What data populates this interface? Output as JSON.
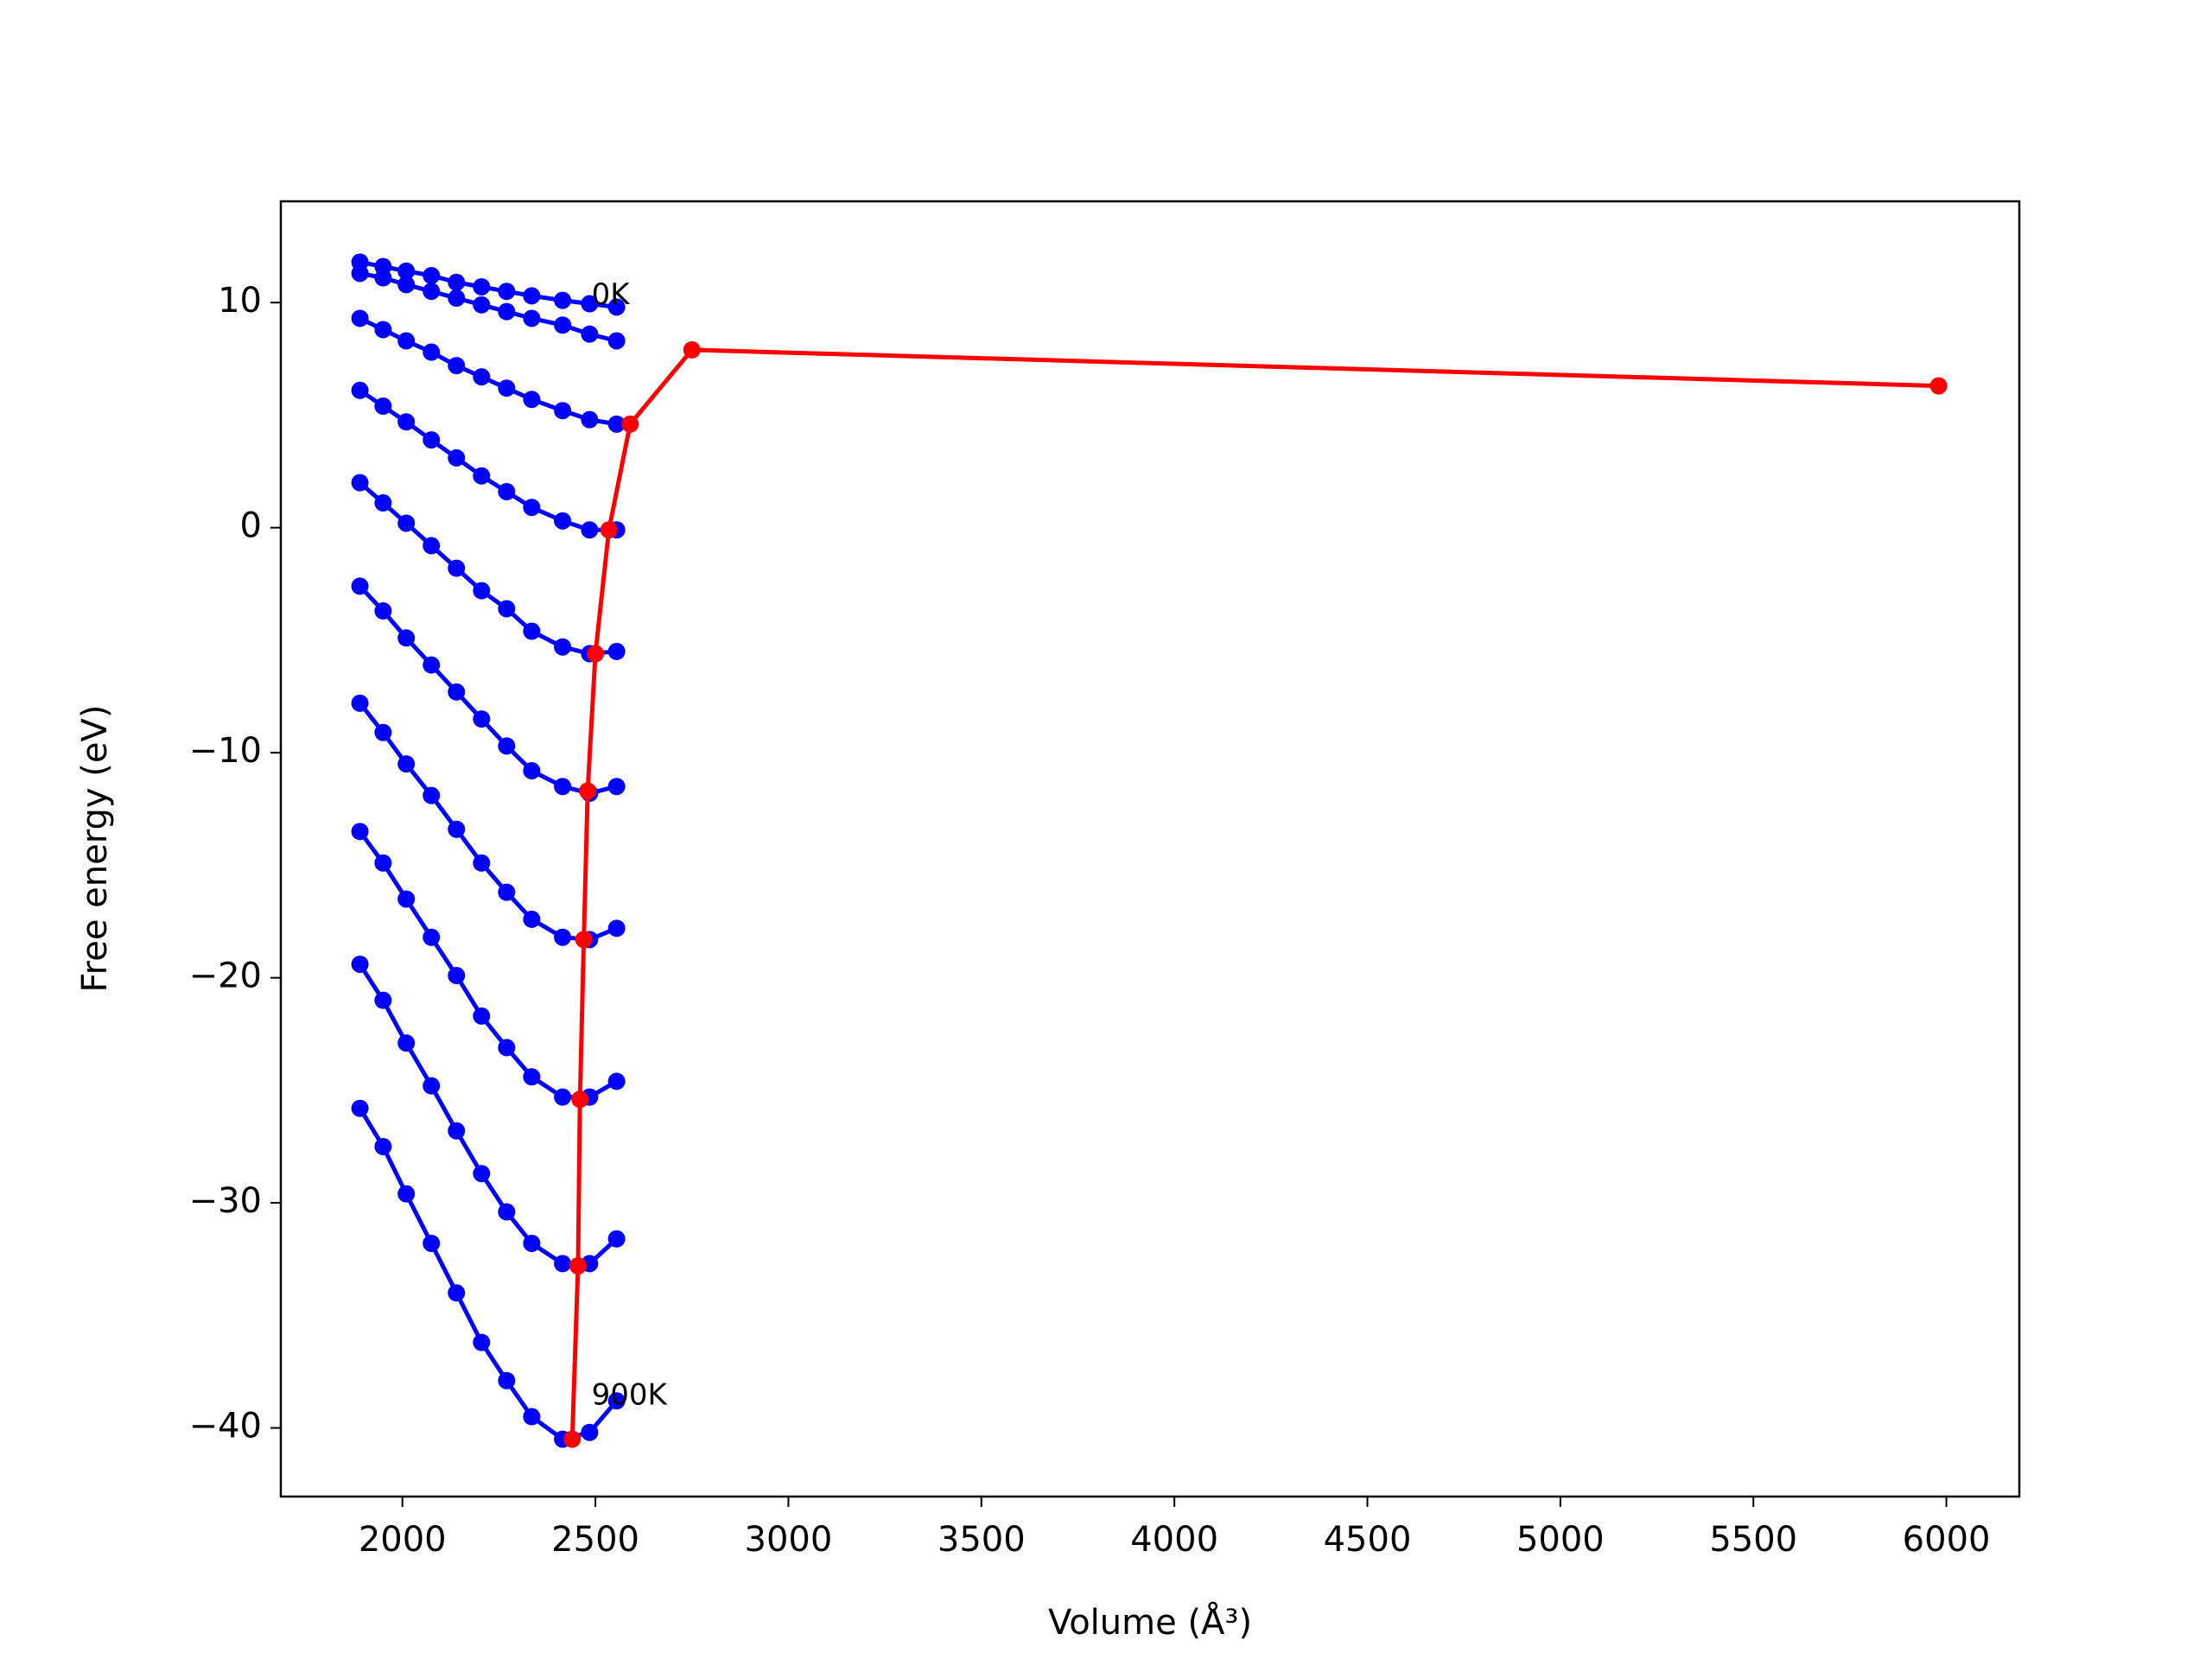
{
  "chart_data": {
    "type": "line",
    "xlabel": "Volume (Å³)",
    "ylabel": "Free energy (eV)",
    "xlim": [
      1685,
      6189
    ],
    "ylim": [
      -43.05,
      14.5
    ],
    "xticks": [
      2000,
      2500,
      3000,
      3500,
      4000,
      4500,
      5000,
      5500,
      6000
    ],
    "yticks": [
      {
        "value": -40,
        "label": "−40"
      },
      {
        "value": -30,
        "label": "−30"
      },
      {
        "value": -20,
        "label": "−20"
      },
      {
        "value": -10,
        "label": "−10"
      },
      0,
      10
    ],
    "grid": false,
    "series": [
      {
        "color": "#0000ff",
        "x": [
          1890,
          1950,
          2010,
          2075,
          2140,
          2205,
          2270,
          2335,
          2415,
          2485,
          2555
        ],
        "values": [
          11.8,
          11.6,
          11.4,
          11.2,
          10.9,
          10.7,
          10.5,
          10.3,
          10.1,
          9.95,
          9.8
        ]
      },
      {
        "color": "#0000ff",
        "x": [
          1890,
          1950,
          2010,
          2075,
          2140,
          2205,
          2270,
          2335,
          2415,
          2485,
          2555
        ],
        "values": [
          11.3,
          11.1,
          10.8,
          10.5,
          10.2,
          9.9,
          9.6,
          9.3,
          9.0,
          8.6,
          8.3
        ]
      },
      {
        "color": "#0000ff",
        "x": [
          1890,
          1950,
          2010,
          2075,
          2140,
          2205,
          2270,
          2335,
          2415,
          2485,
          2555
        ],
        "values": [
          9.3,
          8.8,
          8.3,
          7.8,
          7.2,
          6.7,
          6.2,
          5.7,
          5.2,
          4.8,
          4.6
        ]
      },
      {
        "color": "#0000ff",
        "x": [
          1890,
          1950,
          2010,
          2075,
          2140,
          2205,
          2270,
          2335,
          2415,
          2485,
          2555
        ],
        "values": [
          6.1,
          5.4,
          4.7,
          3.9,
          3.1,
          2.3,
          1.6,
          0.9,
          0.3,
          -0.1,
          -0.1
        ]
      },
      {
        "color": "#0000ff",
        "x": [
          1890,
          1950,
          2010,
          2075,
          2140,
          2205,
          2270,
          2335,
          2415,
          2485,
          2555
        ],
        "values": [
          2.0,
          1.1,
          0.2,
          -0.8,
          -1.8,
          -2.8,
          -3.6,
          -4.6,
          -5.3,
          -5.6,
          -5.5
        ]
      },
      {
        "color": "#0000ff",
        "x": [
          1890,
          1950,
          2010,
          2075,
          2140,
          2205,
          2270,
          2335,
          2415,
          2485,
          2555
        ],
        "values": [
          -2.6,
          -3.7,
          -4.9,
          -6.1,
          -7.3,
          -8.5,
          -9.7,
          -10.8,
          -11.5,
          -11.8,
          -11.5
        ]
      },
      {
        "color": "#0000ff",
        "x": [
          1890,
          1950,
          2010,
          2075,
          2140,
          2205,
          2270,
          2335,
          2415,
          2485,
          2555
        ],
        "values": [
          -7.8,
          -9.1,
          -10.5,
          -11.9,
          -13.4,
          -14.9,
          -16.2,
          -17.4,
          -18.2,
          -18.3,
          -17.8
        ]
      },
      {
        "color": "#0000ff",
        "x": [
          1890,
          1950,
          2010,
          2075,
          2140,
          2205,
          2270,
          2335,
          2415,
          2485,
          2555
        ],
        "values": [
          -13.5,
          -14.9,
          -16.5,
          -18.2,
          -19.9,
          -21.7,
          -23.1,
          -24.4,
          -25.3,
          -25.3,
          -24.6
        ]
      },
      {
        "color": "#0000ff",
        "x": [
          1890,
          1950,
          2010,
          2075,
          2140,
          2205,
          2270,
          2335,
          2415,
          2485,
          2555
        ],
        "values": [
          -19.4,
          -21.0,
          -22.9,
          -24.8,
          -26.8,
          -28.7,
          -30.4,
          -31.8,
          -32.7,
          -32.7,
          -31.6
        ]
      },
      {
        "color": "#0000ff",
        "x": [
          1890,
          1950,
          2010,
          2075,
          2140,
          2205,
          2270,
          2335,
          2415,
          2485,
          2555
        ],
        "values": [
          -25.8,
          -27.5,
          -29.6,
          -31.8,
          -34.0,
          -36.2,
          -37.9,
          -39.5,
          -40.5,
          -40.2,
          -38.8
        ]
      },
      {
        "color": "#ff0000",
        "x": [
          2440,
          2455,
          2460,
          2470,
          2480,
          2500,
          2535,
          2590,
          2750,
          5980
        ],
        "values": [
          -40.5,
          -32.8,
          -25.4,
          -18.3,
          -11.7,
          -5.6,
          -0.1,
          4.6,
          7.9,
          6.3
        ]
      }
    ],
    "annotations": [
      {
        "text": "0K",
        "x": 2490,
        "y": 10.3
      },
      {
        "text": "900K",
        "x": 2490,
        "y": -38.6
      }
    ]
  }
}
